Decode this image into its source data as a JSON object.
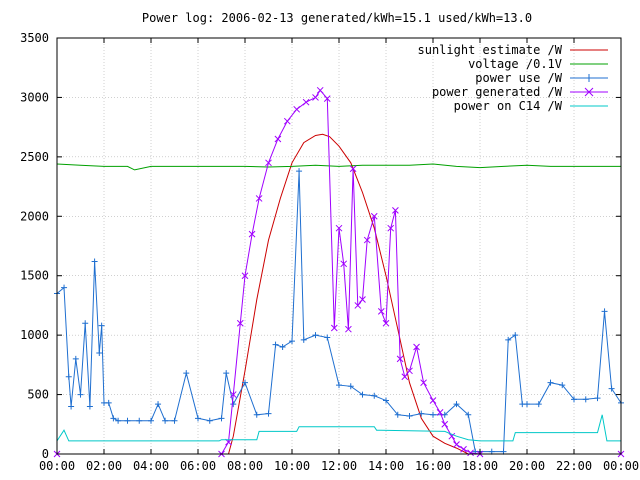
{
  "chart_data": {
    "type": "line",
    "title": "Power log: 2006-02-13 generated/kWh=15.1 used/kWh=13.0",
    "xlabel": "",
    "ylabel": "",
    "xlim": [
      0,
      24
    ],
    "ylim": [
      0,
      3500
    ],
    "x_ticks": [
      0,
      2,
      4,
      6,
      8,
      10,
      12,
      14,
      16,
      18,
      20,
      22,
      24
    ],
    "x_tick_labels": [
      "00:00",
      "02:00",
      "04:00",
      "06:00",
      "08:00",
      "10:00",
      "12:00",
      "14:00",
      "16:00",
      "18:00",
      "20:00",
      "22:00",
      "00:00"
    ],
    "y_ticks": [
      0,
      500,
      1000,
      1500,
      2000,
      2500,
      3000,
      3500
    ],
    "y_tick_labels": [
      "0",
      "500",
      "1000",
      "1500",
      "2000",
      "2500",
      "3000",
      "3500"
    ],
    "grid": true,
    "legend_position": "top-right",
    "series": [
      {
        "name": "sunlight estimate /W",
        "color": "#cc0000",
        "marker": "none",
        "x": [
          0,
          7.3,
          7.5,
          8.0,
          8.5,
          9.0,
          9.5,
          10.0,
          10.5,
          11.0,
          11.3,
          11.6,
          12.0,
          12.5,
          13.0,
          13.5,
          14.0,
          14.5,
          15.0,
          15.5,
          16.0,
          16.5,
          17.0,
          17.5,
          24
        ],
        "y": [
          0,
          0,
          150,
          700,
          1300,
          1800,
          2150,
          2450,
          2620,
          2680,
          2690,
          2670,
          2590,
          2450,
          2200,
          1900,
          1500,
          1050,
          600,
          300,
          150,
          90,
          50,
          0,
          0
        ]
      },
      {
        "name": "voltage /0.1V",
        "color": "#00a000",
        "marker": "none",
        "x": [
          0,
          1,
          2,
          3,
          3.3,
          4,
          5,
          6,
          7,
          8,
          9,
          10,
          11,
          12,
          13,
          14,
          15,
          16,
          17,
          18,
          19,
          20,
          21,
          22,
          23,
          24
        ],
        "y": [
          2440,
          2430,
          2420,
          2420,
          2390,
          2420,
          2420,
          2420,
          2420,
          2420,
          2415,
          2420,
          2430,
          2420,
          2430,
          2430,
          2430,
          2440,
          2420,
          2410,
          2420,
          2430,
          2420,
          2420,
          2420,
          2420
        ]
      },
      {
        "name": "power use /W",
        "color": "#1f6fd0",
        "marker": "plus",
        "x": [
          0,
          0.3,
          0.5,
          0.6,
          0.8,
          1.0,
          1.2,
          1.4,
          1.6,
          1.8,
          1.9,
          2.0,
          2.2,
          2.4,
          2.6,
          3.0,
          3.5,
          4.0,
          4.3,
          4.6,
          5.0,
          5.5,
          6.0,
          6.5,
          7.0,
          7.2,
          7.5,
          8.0,
          8.5,
          9.0,
          9.3,
          9.6,
          10.0,
          10.3,
          10.5,
          11.0,
          11.5,
          12.0,
          12.5,
          13.0,
          13.5,
          14.0,
          14.5,
          15.0,
          15.5,
          16.0,
          16.5,
          17.0,
          17.5,
          17.8,
          18.0,
          18.5,
          19.0,
          19.2,
          19.5,
          19.8,
          20.0,
          20.5,
          21.0,
          21.5,
          22.0,
          22.5,
          23.0,
          23.3,
          23.6,
          24.0
        ],
        "y": [
          1350,
          1400,
          650,
          400,
          800,
          500,
          1100,
          400,
          1620,
          850,
          1080,
          430,
          430,
          300,
          280,
          280,
          280,
          280,
          420,
          280,
          280,
          680,
          300,
          280,
          300,
          680,
          420,
          600,
          330,
          340,
          920,
          900,
          950,
          2380,
          960,
          1000,
          980,
          580,
          570,
          500,
          490,
          450,
          330,
          320,
          340,
          330,
          330,
          420,
          330,
          20,
          20,
          20,
          20,
          960,
          1000,
          420,
          420,
          420,
          600,
          580,
          460,
          460,
          470,
          1200,
          550,
          430
        ]
      },
      {
        "name": "power generated /W",
        "color": "#a000ff",
        "marker": "x",
        "x": [
          0,
          7.0,
          7.3,
          7.5,
          7.8,
          8.0,
          8.3,
          8.6,
          9.0,
          9.4,
          9.8,
          10.2,
          10.6,
          11.0,
          11.2,
          11.5,
          11.8,
          12.0,
          12.2,
          12.4,
          12.6,
          12.8,
          13.0,
          13.2,
          13.5,
          13.8,
          14.0,
          14.2,
          14.4,
          14.6,
          14.8,
          15.0,
          15.3,
          15.6,
          16.0,
          16.3,
          16.5,
          16.8,
          17.0,
          17.3,
          17.6,
          18.0,
          24
        ],
        "y": [
          0,
          0,
          100,
          500,
          1100,
          1500,
          1850,
          2150,
          2450,
          2650,
          2800,
          2900,
          2960,
          3000,
          3060,
          2990,
          1060,
          1900,
          1600,
          1050,
          2400,
          1250,
          1300,
          1800,
          2000,
          1200,
          1100,
          1900,
          2050,
          800,
          650,
          700,
          900,
          600,
          450,
          350,
          250,
          150,
          80,
          40,
          10,
          0,
          0
        ]
      },
      {
        "name": "power on C14 /W",
        "color": "#00c8c8",
        "marker": "none",
        "x": [
          0,
          0.3,
          0.5,
          1.0,
          6.9,
          7.0,
          8.5,
          8.6,
          10.2,
          10.3,
          13.5,
          13.6,
          16.5,
          17.0,
          17.5,
          18.0,
          19.4,
          19.5,
          23.0,
          23.2,
          23.4,
          24
        ],
        "y": [
          110,
          200,
          110,
          110,
          110,
          120,
          120,
          190,
          190,
          230,
          230,
          200,
          190,
          150,
          120,
          110,
          110,
          180,
          180,
          330,
          110,
          110
        ]
      }
    ]
  }
}
